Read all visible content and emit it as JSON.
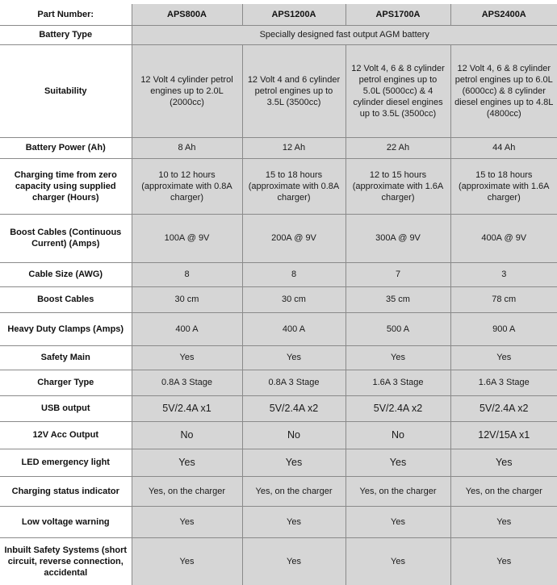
{
  "header": {
    "label": "Part Number:",
    "models": [
      "APS800A",
      "APS1200A",
      "APS1700A",
      "APS2400A"
    ]
  },
  "battery_type": {
    "label": "Battery Type",
    "value": "Specially designed fast output AGM battery"
  },
  "rows": [
    {
      "label": "Suitability",
      "values": [
        "12 Volt 4 cylinder petrol engines up to 2.0L (2000cc)",
        "12 Volt 4 and 6 cylinder petrol engines up to 3.5L (3500cc)",
        "12 Volt 4, 6 & 8 cylinder petrol engines up to 5.0L (5000cc) & 4 cylinder diesel engines up to 3.5L (3500cc)",
        "12 Volt 4, 6 & 8 cylinder petrol engines up to 6.0L (6000cc) & 8 cylinder diesel engines up to 4.8L (4800cc)"
      ]
    },
    {
      "label": "Battery Power (Ah)",
      "values": [
        "8 Ah",
        "12 Ah",
        "22 Ah",
        "44 Ah"
      ]
    },
    {
      "label": "Charging time from zero capacity using supplied charger (Hours)",
      "values": [
        "10 to 12 hours (approximate with 0.8A charger)",
        "15 to 18 hours (approximate with 0.8A charger)",
        "12 to 15 hours (approximate with 1.6A charger)",
        "15 to 18 hours (approximate with 1.6A charger)"
      ]
    },
    {
      "label": "Boost Cables (Continuous Current) (Amps)",
      "values": [
        "100A @ 9V",
        "200A @ 9V",
        "300A @ 9V",
        "400A @ 9V"
      ]
    },
    {
      "label": "Cable Size (AWG)",
      "values": [
        "8",
        "8",
        "7",
        "3"
      ]
    },
    {
      "label": "Boost Cables",
      "values": [
        "30 cm",
        "30 cm",
        "35 cm",
        "78 cm"
      ]
    },
    {
      "label": "Heavy Duty Clamps (Amps)",
      "values": [
        "400 A",
        "400 A",
        "500 A",
        "900 A"
      ]
    },
    {
      "label": "Safety Main",
      "values": [
        "Yes",
        "Yes",
        "Yes",
        "Yes"
      ]
    },
    {
      "label": "Charger Type",
      "values": [
        "0.8A 3 Stage",
        "0.8A 3 Stage",
        "1.6A 3 Stage",
        "1.6A 3 Stage"
      ]
    },
    {
      "label": "USB output",
      "values": [
        "5V/2.4A x1",
        "5V/2.4A x2",
        "5V/2.4A x2",
        "5V/2.4A x2"
      ]
    },
    {
      "label": "12V Acc Output",
      "values": [
        "No",
        "No",
        "No",
        "12V/15A x1"
      ]
    },
    {
      "label": "LED emergency light",
      "values": [
        "Yes",
        "Yes",
        "Yes",
        "Yes"
      ]
    },
    {
      "label": "Charging status indicator",
      "values": [
        "Yes, on the charger",
        "Yes, on the charger",
        "Yes, on the charger",
        "Yes, on the charger"
      ]
    },
    {
      "label": "Low voltage warning",
      "values": [
        "Yes",
        "Yes",
        "Yes",
        "Yes"
      ]
    },
    {
      "label": "Inbuilt Safety Systems (short circuit, reverse connection, accidental",
      "values": [
        "Yes",
        "Yes",
        "Yes",
        "Yes"
      ]
    }
  ]
}
